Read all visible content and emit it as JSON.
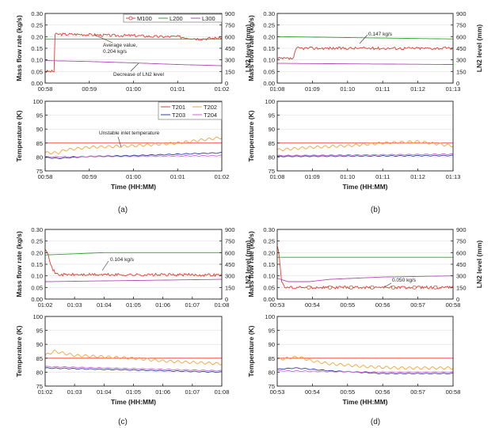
{
  "colors": {
    "M100": "#e8392c",
    "L200": "#2fa52f",
    "L300": "#b04ab8",
    "T201": "#e8392c",
    "T202": "#f5a23a",
    "T203": "#2f3fa0",
    "T204": "#c76bd3",
    "axis": "#222222",
    "grid": "#d9d9d9"
  },
  "panel_labels": [
    "(a)",
    "(b)",
    "(c)",
    "(d)"
  ],
  "chart_data": [
    {
      "panel": "(a)",
      "type": "line",
      "ylabel": "Mass flow rate (kg/s)",
      "y2label": "LN2 level (mm)",
      "ylim": [
        0,
        0.3
      ],
      "y2lim": [
        0,
        900
      ],
      "yticks": [
        "0.00",
        "0.05",
        "0.10",
        "0.15",
        "0.20",
        "0.25",
        "0.30"
      ],
      "y2ticks": [
        "0",
        "150",
        "300",
        "450",
        "600",
        "750",
        "900"
      ],
      "xticks": [
        "00:58",
        "00:59",
        "01:00",
        "01:01",
        "01:02"
      ],
      "legend": [
        "M100",
        "L200",
        "L300"
      ],
      "annotations": [
        "Average value,",
        "0.204 kg/s",
        "Decrease of LN2 level"
      ],
      "series": [
        {
          "name": "M100",
          "x": [
            0,
            0.2,
            0.22,
            0.8,
            1.5,
            2.0,
            2.5,
            3.0,
            3.5,
            4.0
          ],
          "values": [
            0.05,
            0.05,
            0.21,
            0.21,
            0.205,
            0.205,
            0.2,
            0.2,
            0.19,
            0.195
          ]
        },
        {
          "name": "L200",
          "x": [
            0,
            4
          ],
          "values": [
            0.19,
            0.19
          ]
        },
        {
          "name": "L300",
          "x": [
            0,
            1,
            2,
            3,
            4
          ],
          "values": [
            0.097,
            0.093,
            0.087,
            0.08,
            0.075
          ]
        }
      ]
    },
    {
      "panel": "(a)",
      "type": "line",
      "ylabel": "Temperature (K)",
      "xlabel": "Time (HH:MM)",
      "ylim": [
        75,
        100
      ],
      "yticks": [
        "75",
        "80",
        "85",
        "90",
        "95",
        "100"
      ],
      "xticks": [
        "00:58",
        "00:59",
        "01:00",
        "01:01",
        "01:02"
      ],
      "legend": [
        "T201",
        "T202",
        "T203",
        "T204"
      ],
      "annotations": [
        "Unstable inlet temperature"
      ],
      "series": [
        {
          "name": "T201",
          "x": [
            0,
            4
          ],
          "values": [
            85,
            85
          ]
        },
        {
          "name": "T202",
          "x": [
            0,
            0.3,
            0.45,
            1,
            2,
            3,
            4
          ],
          "values": [
            81.5,
            81.5,
            82.5,
            83.5,
            84,
            85,
            87
          ]
        },
        {
          "name": "T203",
          "x": [
            0,
            0.3,
            1,
            2,
            3,
            4
          ],
          "values": [
            79.8,
            79.5,
            80.2,
            80.5,
            81,
            81.5
          ]
        },
        {
          "name": "T204",
          "x": [
            0,
            4
          ],
          "values": [
            80,
            80.5
          ]
        }
      ]
    },
    {
      "panel": "(b)",
      "type": "line",
      "ylabel": "Mass flow rate (kg/s)",
      "y2label": "LN2 level (mm)",
      "ylim": [
        0,
        0.3
      ],
      "y2lim": [
        0,
        900
      ],
      "yticks": [
        "0.00",
        "0.05",
        "0.10",
        "0.15",
        "0.20",
        "0.25",
        "0.30"
      ],
      "y2ticks": [
        "0",
        "150",
        "300",
        "450",
        "600",
        "750",
        "900"
      ],
      "xticks": [
        "01:08",
        "01:09",
        "01:10",
        "01:11",
        "01:12",
        "01:13"
      ],
      "annotations": [
        "0.147 kg/s"
      ],
      "series": [
        {
          "name": "M100",
          "x": [
            0,
            0.45,
            0.55,
            5
          ],
          "values": [
            0.105,
            0.105,
            0.15,
            0.15
          ]
        },
        {
          "name": "L200",
          "x": [
            0,
            5
          ],
          "values": [
            0.2,
            0.19
          ]
        },
        {
          "name": "L300",
          "x": [
            0,
            5
          ],
          "values": [
            0.085,
            0.08
          ]
        }
      ]
    },
    {
      "panel": "(b)",
      "type": "line",
      "ylabel": "Temperature (K)",
      "xlabel": "Time (HH:MM)",
      "ylim": [
        75,
        100
      ],
      "yticks": [
        "75",
        "80",
        "85",
        "90",
        "95",
        "100"
      ],
      "xticks": [
        "01:08",
        "01:09",
        "01:10",
        "01:11",
        "01:12",
        "01:13"
      ],
      "series": [
        {
          "name": "T201",
          "x": [
            0,
            5
          ],
          "values": [
            85,
            85
          ]
        },
        {
          "name": "T202",
          "x": [
            0,
            1,
            2,
            3,
            4,
            5
          ],
          "values": [
            82.5,
            83.5,
            84,
            85,
            85.5,
            84
          ]
        },
        {
          "name": "T203",
          "x": [
            0,
            5
          ],
          "values": [
            80.2,
            80.5
          ]
        },
        {
          "name": "T204",
          "x": [
            0,
            5
          ],
          "values": [
            80.5,
            81
          ]
        }
      ]
    },
    {
      "panel": "(c)",
      "type": "line",
      "ylabel": "Mass flow rate (kg/s)",
      "y2label": "LN2 level (mm)",
      "ylim": [
        0,
        0.3
      ],
      "y2lim": [
        0,
        900
      ],
      "yticks": [
        "0.00",
        "0.05",
        "0.10",
        "0.15",
        "0.20",
        "0.25",
        "0.30"
      ],
      "y2ticks": [
        "0",
        "150",
        "300",
        "450",
        "600",
        "750",
        "900"
      ],
      "xticks": [
        "01:02",
        "01:03",
        "01:04",
        "01:05",
        "01:06",
        "01:07",
        "01:08"
      ],
      "annotations": [
        "0.104 kg/s"
      ],
      "series": [
        {
          "name": "M100",
          "x": [
            0,
            0.1,
            0.2,
            0.35,
            0.5,
            6
          ],
          "values": [
            0.22,
            0.2,
            0.14,
            0.11,
            0.105,
            0.104
          ]
        },
        {
          "name": "L200",
          "x": [
            0,
            2,
            6
          ],
          "values": [
            0.19,
            0.2,
            0.2
          ]
        },
        {
          "name": "L300",
          "x": [
            0,
            6
          ],
          "values": [
            0.075,
            0.085
          ]
        }
      ]
    },
    {
      "panel": "(c)",
      "type": "line",
      "ylabel": "Temperature (K)",
      "xlabel": "Time (HH:MM)",
      "ylim": [
        75,
        100
      ],
      "yticks": [
        "75",
        "80",
        "85",
        "90",
        "95",
        "100"
      ],
      "xticks": [
        "01:02",
        "01:03",
        "01:04",
        "01:05",
        "01:06",
        "01:07",
        "01:08"
      ],
      "series": [
        {
          "name": "T201",
          "x": [
            0,
            6
          ],
          "values": [
            85,
            85
          ]
        },
        {
          "name": "T202",
          "x": [
            0,
            0.3,
            1,
            2,
            3,
            4,
            5,
            6
          ],
          "values": [
            86,
            87.5,
            86,
            85.5,
            85,
            84,
            83.5,
            83
          ]
        },
        {
          "name": "T203",
          "x": [
            0,
            6
          ],
          "values": [
            81.5,
            80
          ]
        },
        {
          "name": "T204",
          "x": [
            0,
            6
          ],
          "values": [
            82,
            80.5
          ]
        }
      ]
    },
    {
      "panel": "(d)",
      "type": "line",
      "ylabel": "Mass flow rate (kg/s)",
      "y2label": "LN2 level (mm)",
      "ylim": [
        0,
        0.3
      ],
      "y2lim": [
        0,
        900
      ],
      "yticks": [
        "0.00",
        "0.05",
        "0.10",
        "0.15",
        "0.20",
        "0.25",
        "0.30"
      ],
      "y2ticks": [
        "0",
        "150",
        "300",
        "450",
        "600",
        "750",
        "900"
      ],
      "xticks": [
        "00:53",
        "00:54",
        "00:55",
        "00:56",
        "00:57",
        "00:58"
      ],
      "annotations": [
        "0.050 kg/s"
      ],
      "series": [
        {
          "name": "M100",
          "x": [
            0,
            0.05,
            0.12,
            0.2,
            5
          ],
          "values": [
            0.23,
            0.2,
            0.08,
            0.05,
            0.05
          ]
        },
        {
          "name": "L200",
          "x": [
            0,
            5
          ],
          "values": [
            0.18,
            0.18
          ]
        },
        {
          "name": "L300",
          "x": [
            0,
            0.3,
            0.9,
            1.5,
            3,
            5
          ],
          "values": [
            0.09,
            0.075,
            0.075,
            0.085,
            0.095,
            0.1
          ]
        }
      ]
    },
    {
      "panel": "(d)",
      "type": "line",
      "ylabel": "Temperature (K)",
      "xlabel": "Time (HH:MM)",
      "ylim": [
        75,
        100
      ],
      "yticks": [
        "75",
        "80",
        "85",
        "90",
        "95",
        "100"
      ],
      "xticks": [
        "00:53",
        "00:54",
        "00:55",
        "00:56",
        "00:57",
        "00:58"
      ],
      "series": [
        {
          "name": "T201",
          "x": [
            0,
            5
          ],
          "values": [
            85,
            85
          ]
        },
        {
          "name": "T202",
          "x": [
            0,
            0.6,
            1.0,
            1.5,
            2.5,
            3.5,
            5
          ],
          "values": [
            84.5,
            85.5,
            84,
            83,
            82,
            81.5,
            81.5
          ]
        },
        {
          "name": "T203",
          "x": [
            0,
            0.5,
            1.5,
            3,
            5
          ],
          "values": [
            81,
            81.5,
            80.5,
            79.5,
            79.5
          ]
        },
        {
          "name": "T204",
          "x": [
            0,
            1.5,
            3,
            5
          ],
          "values": [
            80.5,
            80.2,
            80,
            80
          ]
        }
      ]
    }
  ]
}
